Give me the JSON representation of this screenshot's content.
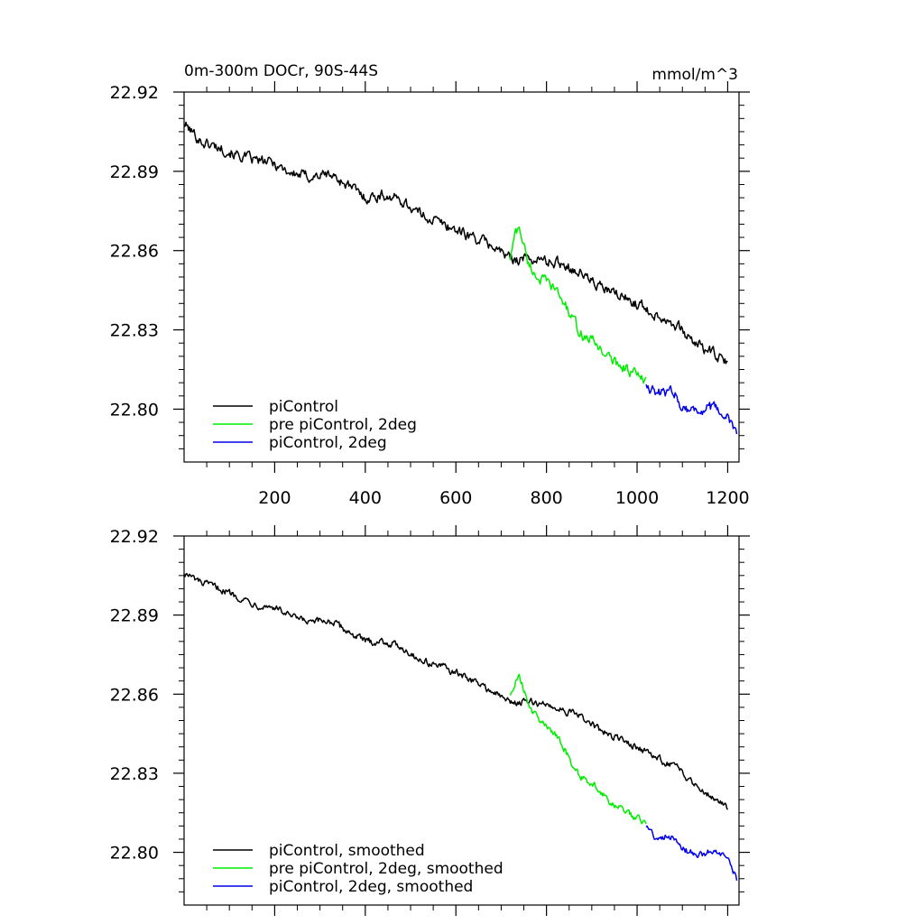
{
  "chart_data": [
    {
      "type": "line",
      "title": "0m-300m DOCr, 90S-44S",
      "units": "mmol/m^3",
      "xlabel": "",
      "ylabel": "",
      "xlim": [
        0,
        1225
      ],
      "ylim": [
        22.78,
        22.92
      ],
      "yticks": [
        "22.92",
        "22.89",
        "22.86",
        "22.83",
        "22.80"
      ],
      "xticks": [
        "200",
        "400",
        "600",
        "800",
        "1000",
        "1200"
      ],
      "legend_position": "bottom-left",
      "series": [
        {
          "name": "piControl",
          "color": "#000000",
          "x": [
            0,
            40,
            80,
            120,
            160,
            200,
            240,
            280,
            320,
            360,
            400,
            440,
            480,
            520,
            560,
            600,
            640,
            680,
            720,
            760,
            800,
            840,
            880,
            920,
            960,
            1000,
            1040,
            1080,
            1120,
            1160,
            1200
          ],
          "y": [
            22.908,
            22.901,
            22.899,
            22.896,
            22.894,
            22.893,
            22.889,
            22.888,
            22.889,
            22.885,
            22.88,
            22.881,
            22.879,
            22.874,
            22.871,
            22.868,
            22.865,
            22.862,
            22.857,
            22.857,
            22.856,
            22.855,
            22.851,
            22.846,
            22.843,
            22.84,
            22.836,
            22.833,
            22.826,
            22.822,
            22.817
          ]
        },
        {
          "name": "pre piControl, 2deg",
          "color": "#00ee00",
          "x": [
            720,
            730,
            740,
            750,
            760,
            780,
            800,
            820,
            840,
            860,
            880,
            900,
            920,
            940,
            960,
            980,
            1000,
            1020
          ],
          "y": [
            22.857,
            22.866,
            22.869,
            22.862,
            22.855,
            22.85,
            22.848,
            22.845,
            22.84,
            22.833,
            22.828,
            22.826,
            22.823,
            22.819,
            22.817,
            22.815,
            22.813,
            22.81
          ]
        },
        {
          "name": "piControl, 2deg",
          "color": "#0000ee",
          "x": [
            1020,
            1040,
            1060,
            1080,
            1100,
            1120,
            1140,
            1160,
            1180,
            1200,
            1220
          ],
          "y": [
            22.81,
            22.806,
            22.806,
            22.807,
            22.801,
            22.8,
            22.799,
            22.801,
            22.799,
            22.797,
            22.79
          ]
        }
      ]
    },
    {
      "type": "line",
      "title": "",
      "xlabel": "",
      "ylabel": "",
      "xlim": [
        0,
        1225
      ],
      "ylim": [
        22.78,
        22.92
      ],
      "yticks": [
        "22.92",
        "22.89",
        "22.86",
        "22.83",
        "22.80"
      ],
      "legend_position": "bottom-left",
      "series": [
        {
          "name": "piControl, smoothed",
          "color": "#000000",
          "x": [
            0,
            40,
            80,
            120,
            160,
            200,
            240,
            280,
            320,
            360,
            400,
            440,
            480,
            520,
            560,
            600,
            640,
            680,
            720,
            760,
            800,
            840,
            880,
            920,
            960,
            1000,
            1040,
            1080,
            1120,
            1160,
            1200
          ],
          "y": [
            22.906,
            22.902,
            22.9,
            22.897,
            22.894,
            22.893,
            22.889,
            22.887,
            22.888,
            22.884,
            22.88,
            22.88,
            22.878,
            22.873,
            22.871,
            22.868,
            22.865,
            22.861,
            22.857,
            22.857,
            22.856,
            22.854,
            22.851,
            22.846,
            22.843,
            22.84,
            22.836,
            22.833,
            22.827,
            22.822,
            22.817
          ]
        },
        {
          "name": "pre piControl, 2deg, smoothed",
          "color": "#00ee00",
          "x": [
            720,
            730,
            740,
            750,
            760,
            780,
            800,
            820,
            840,
            860,
            880,
            900,
            920,
            940,
            960,
            980,
            1000,
            1020
          ],
          "y": [
            22.86,
            22.865,
            22.867,
            22.862,
            22.856,
            22.851,
            22.848,
            22.845,
            22.839,
            22.832,
            22.828,
            22.826,
            22.823,
            22.819,
            22.817,
            22.815,
            22.813,
            22.811
          ]
        },
        {
          "name": "piControl, 2deg, smoothed",
          "color": "#0000ee",
          "x": [
            1020,
            1040,
            1060,
            1080,
            1100,
            1120,
            1140,
            1160,
            1180,
            1200,
            1220
          ],
          "y": [
            22.81,
            22.806,
            22.806,
            22.806,
            22.801,
            22.8,
            22.799,
            22.8,
            22.799,
            22.797,
            22.79
          ]
        }
      ]
    }
  ]
}
